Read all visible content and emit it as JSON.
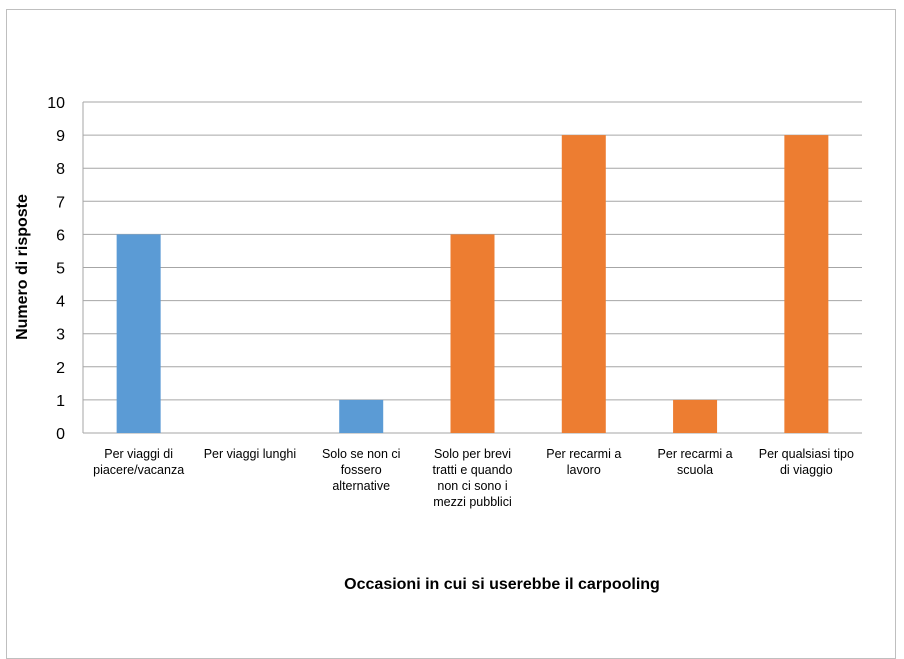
{
  "chart_data": {
    "type": "bar",
    "title": "",
    "xlabel": "Occasioni in cui si userebbe il carpooling",
    "ylabel": "Numero di risposte",
    "ylim": [
      0,
      10
    ],
    "yticks": [
      "0",
      "1",
      "2",
      "3",
      "4",
      "5",
      "6",
      "7",
      "8",
      "9",
      "10"
    ],
    "grid": true,
    "legend": "none",
    "categories": [
      [
        "Per viaggi di",
        "piacere/vacanza"
      ],
      [
        "Per viaggi lunghi"
      ],
      [
        "Solo se non ci",
        "fossero",
        "alternative"
      ],
      [
        "Solo per brevi",
        "tratti e quando",
        "non ci sono i",
        "mezzi pubblici"
      ],
      [
        "Per recarmi a",
        "lavoro"
      ],
      [
        "Per recarmi a",
        "scuola"
      ],
      [
        "Per qualsiasi tipo",
        "di viaggio"
      ]
    ],
    "values": [
      6,
      0,
      1,
      6,
      9,
      1,
      9
    ],
    "colors": [
      "#5b9bd5",
      "#5b9bd5",
      "#5b9bd5",
      "#ed7d31",
      "#ed7d31",
      "#ed7d31",
      "#ed7d31"
    ]
  }
}
